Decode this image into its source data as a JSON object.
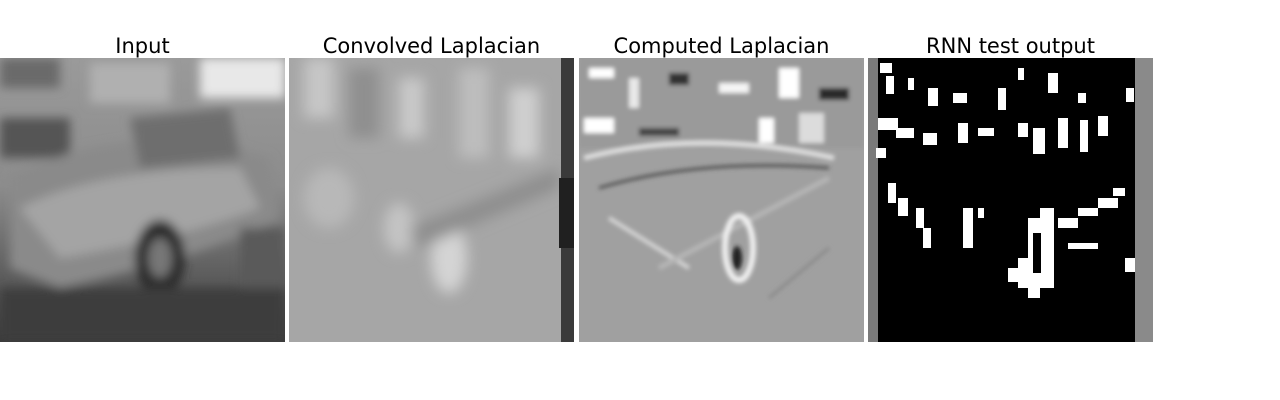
{
  "figure": {
    "panels": [
      {
        "id": "input",
        "title": "Input"
      },
      {
        "id": "convolved",
        "title": "Convolved Laplacian"
      },
      {
        "id": "computed",
        "title": "Computed Laplacian"
      },
      {
        "id": "rnn",
        "title": "RNN test output"
      }
    ]
  }
}
